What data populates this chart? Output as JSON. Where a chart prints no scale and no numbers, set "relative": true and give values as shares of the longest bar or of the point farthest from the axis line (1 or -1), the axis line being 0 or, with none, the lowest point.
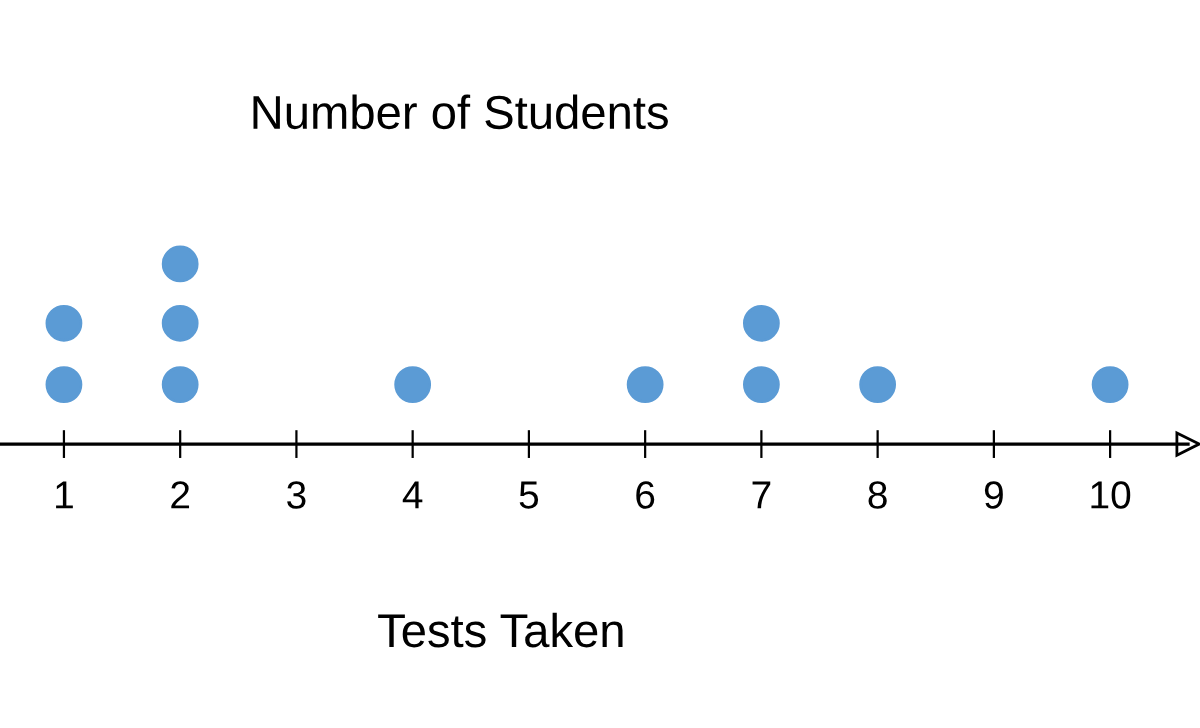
{
  "chart_data": {
    "type": "scatter",
    "title": "Number of Students",
    "xlabel": "Tests Taken",
    "x": [
      1,
      1,
      2,
      2,
      2,
      4,
      6,
      7,
      7,
      8,
      10
    ],
    "values": [
      0.33,
      0.67,
      0.33,
      0.67,
      1,
      0.33,
      0.33,
      0.33,
      0.67,
      0.33,
      0.33
    ],
    "color": "#5b9bd5",
    "relative": true,
    "marker": "circle",
    "xlim": [
      0.45,
      10.67
    ],
    "xticks": [
      1,
      2,
      3,
      4,
      5,
      6,
      7,
      8,
      9,
      10
    ],
    "grid": false,
    "legend": false
  }
}
